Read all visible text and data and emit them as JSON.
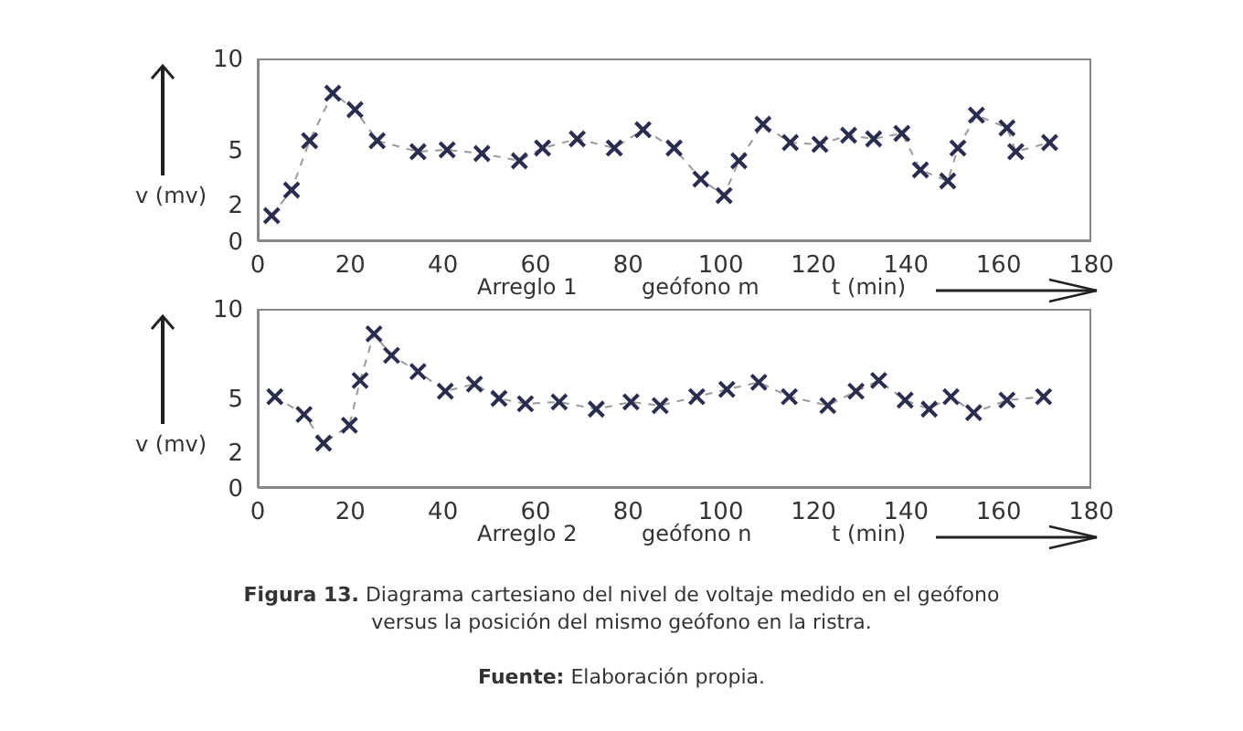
{
  "chart_data": [
    {
      "type": "line",
      "xlabel": "t (min)",
      "ylabel": "v (mv)",
      "annotations": [
        "Arreglo 1",
        "geófono m"
      ],
      "xlim": [
        0,
        180
      ],
      "xticks": [
        0,
        20,
        40,
        60,
        80,
        100,
        120,
        140,
        160,
        180
      ],
      "ylim": [
        0,
        10
      ],
      "yticks": [
        0,
        2,
        5,
        10
      ],
      "marker": "cross",
      "line_style": "dashed",
      "series": [
        {
          "color": "#2b2d4f",
          "x": [
            3.0,
            7.3,
            11.2,
            16.2,
            21.0,
            25.8,
            34.6,
            40.9,
            48.4,
            56.5,
            61.5,
            69.0,
            77.0,
            83.2,
            89.9,
            95.7,
            100.7,
            103.9,
            109.1,
            115.0,
            121.4,
            127.6,
            133.0,
            139.1,
            143.1,
            149.0,
            151.2,
            155.2,
            161.8,
            163.7,
            171.0
          ],
          "values": [
            1.4,
            2.8,
            5.5,
            8.1,
            7.2,
            5.5,
            4.9,
            5.0,
            4.8,
            4.4,
            5.1,
            5.6,
            5.1,
            6.1,
            5.1,
            3.4,
            2.5,
            4.4,
            6.4,
            5.4,
            5.3,
            5.8,
            5.6,
            5.9,
            3.9,
            3.3,
            5.1,
            6.9,
            6.2,
            4.9,
            5.4
          ]
        }
      ]
    },
    {
      "type": "line",
      "xlabel": "t (min)",
      "ylabel": "v (mv)",
      "annotations": [
        "Arreglo 2",
        "geófono n",
        "Figura 13. Diagrama cartesiano del nivel de voltaje medido en el geófono versus la posición del mismo geófono en la ristra.",
        "Fuente: Elaboración propia."
      ],
      "xlim": [
        0,
        180
      ],
      "xticks": [
        0,
        20,
        40,
        60,
        80,
        100,
        120,
        140,
        160,
        180
      ],
      "ylim": [
        0,
        10
      ],
      "yticks": [
        0,
        2,
        5,
        10
      ],
      "marker": "cross",
      "line_style": "dashed",
      "series": [
        {
          "color": "#2b2d4f",
          "x": [
            3.7,
            10.0,
            14.2,
            19.8,
            22.1,
            25.1,
            28.9,
            34.6,
            40.5,
            46.8,
            52.1,
            57.8,
            65.1,
            73.1,
            80.6,
            86.9,
            94.8,
            101.3,
            108.2,
            114.8,
            123.1,
            129.2,
            134.1,
            139.8,
            145.0,
            149.7,
            154.6,
            161.8,
            169.7
          ],
          "values": [
            5.1,
            4.1,
            2.5,
            3.5,
            6.0,
            8.6,
            7.4,
            6.5,
            5.4,
            5.8,
            5.0,
            4.7,
            4.8,
            4.4,
            4.8,
            4.6,
            5.1,
            5.5,
            5.9,
            5.1,
            4.6,
            5.4,
            6.0,
            4.9,
            4.4,
            5.1,
            4.2,
            4.9,
            5.1
          ]
        }
      ]
    }
  ]
}
